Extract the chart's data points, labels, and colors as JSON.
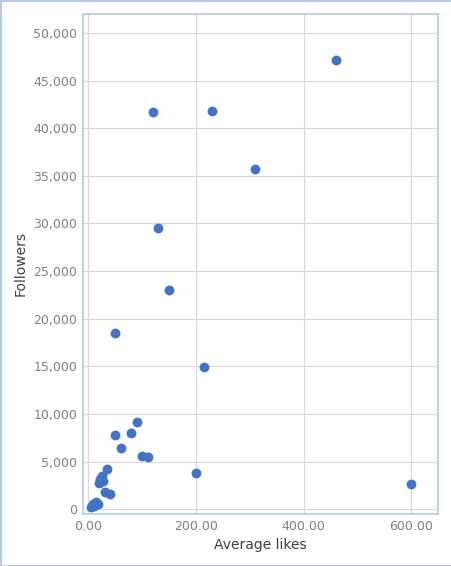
{
  "points": [
    [
      5,
      200
    ],
    [
      8,
      500
    ],
    [
      10,
      300
    ],
    [
      12,
      400
    ],
    [
      15,
      800
    ],
    [
      18,
      600
    ],
    [
      20,
      2800
    ],
    [
      22,
      3200
    ],
    [
      25,
      3500
    ],
    [
      28,
      3000
    ],
    [
      30,
      1800
    ],
    [
      35,
      4200
    ],
    [
      40,
      1600
    ],
    [
      50,
      7800
    ],
    [
      60,
      6400
    ],
    [
      80,
      8000
    ],
    [
      90,
      9200
    ],
    [
      100,
      5600
    ],
    [
      110,
      5500
    ],
    [
      50,
      18500
    ],
    [
      130,
      29500
    ],
    [
      150,
      23000
    ],
    [
      120,
      41700
    ],
    [
      200,
      3800
    ],
    [
      215,
      14900
    ],
    [
      230,
      41800
    ],
    [
      310,
      35700
    ],
    [
      460,
      47200
    ],
    [
      600,
      2700
    ]
  ],
  "xlabel": "Average likes",
  "ylabel": "Followers",
  "xlim": [
    -10,
    650
  ],
  "ylim": [
    -500,
    52000
  ],
  "xticks": [
    0,
    200,
    400,
    600
  ],
  "xtick_labels": [
    "0.00",
    "200.00",
    "400.00",
    "600.00"
  ],
  "yticks": [
    0,
    5000,
    10000,
    15000,
    20000,
    25000,
    30000,
    35000,
    40000,
    45000,
    50000
  ],
  "ytick_labels": [
    "0",
    "5,000",
    "10,000",
    "15,000",
    "20,000",
    "25,000",
    "30,000",
    "35,000",
    "40,000",
    "45,000",
    "50,000"
  ],
  "dot_color": "#4472C4",
  "dot_size": 50,
  "figure_bg_color": "#FFFFFF",
  "plot_bg_color": "#FFFFFF",
  "grid_color": "#D9D9D9",
  "border_color": "#B8C9E1",
  "tick_label_color": "#808080",
  "axis_label_color": "#404040",
  "tick_label_fontsize": 9,
  "axis_label_fontsize": 10
}
